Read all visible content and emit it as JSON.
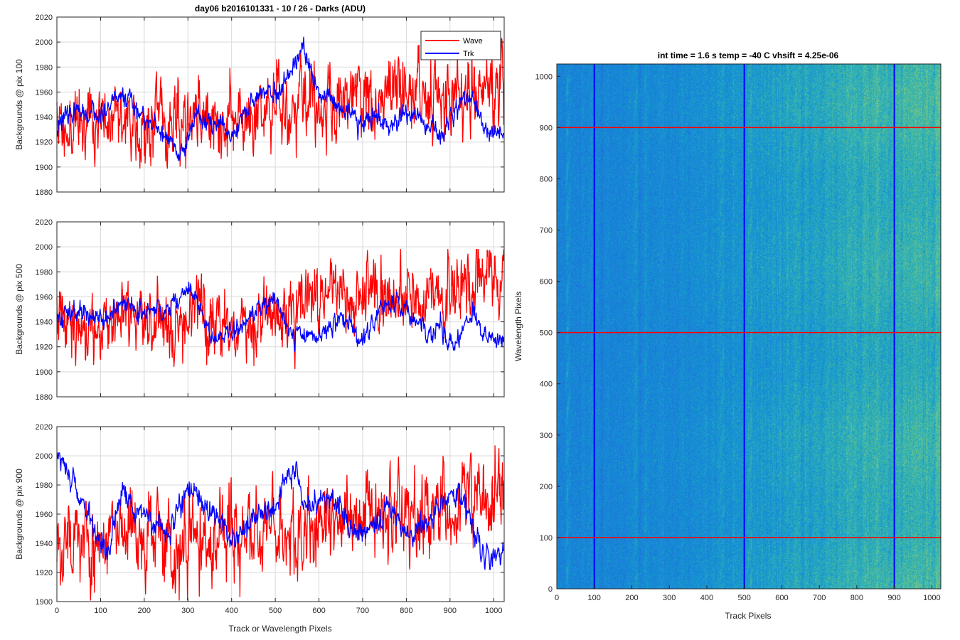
{
  "figure": {
    "title": "day06 b2016101331 - 10 / 26 - Darks (ADU)",
    "colors": {
      "wave": "#ff0000",
      "trk": "#0000ff",
      "grid": "#d9d9d9",
      "axis": "#262626",
      "heat_low": "#1f7fd8",
      "heat_high": "#b8d65a"
    }
  },
  "chart_data": [
    {
      "type": "line",
      "title": "day06 b2016101331 - 10 / 26 - Darks (ADU)",
      "xlabel": "",
      "ylabel": "Backgrounds @ pix 100",
      "xlim": [
        0,
        1024
      ],
      "ylim": [
        1880,
        2020
      ],
      "xticks": [
        0,
        100,
        200,
        300,
        400,
        500,
        600,
        700,
        800,
        900,
        1000
      ],
      "yticks": [
        1880,
        1900,
        1920,
        1940,
        1960,
        1980,
        2000,
        2020
      ],
      "xtick_labels_shown": false,
      "grid": true,
      "legend": {
        "placement": "top-right",
        "entries": [
          "Wave",
          "Trk"
        ]
      },
      "series": [
        {
          "name": "Wave",
          "color": "#ff0000",
          "points": 1024,
          "seed": 11,
          "trend": [
            [
              0,
              1935
            ],
            [
              200,
              1938
            ],
            [
              400,
              1940
            ],
            [
              500,
              1947
            ],
            [
              700,
              1955
            ],
            [
              900,
              1960
            ],
            [
              1023,
              1962
            ]
          ],
          "noise": 22,
          "wander": 4,
          "min": 1899,
          "max": 2003
        },
        {
          "name": "Trk",
          "color": "#0000ff",
          "points": 1024,
          "seed": 23,
          "trend": [
            [
              0,
              1932
            ],
            [
              40,
              1945
            ],
            [
              100,
              1940
            ],
            [
              150,
              1960
            ],
            [
              200,
              1940
            ],
            [
              250,
              1925
            ],
            [
              280,
              1910
            ],
            [
              320,
              1940
            ],
            [
              360,
              1935
            ],
            [
              400,
              1925
            ],
            [
              450,
              1955
            ],
            [
              480,
              1960
            ],
            [
              500,
              1955
            ],
            [
              540,
              1975
            ],
            [
              560,
              1995
            ],
            [
              600,
              1960
            ],
            [
              650,
              1948
            ],
            [
              700,
              1935
            ],
            [
              730,
              1942
            ],
            [
              760,
              1930
            ],
            [
              800,
              1943
            ],
            [
              850,
              1935
            ],
            [
              880,
              1925
            ],
            [
              920,
              1950
            ],
            [
              950,
              1955
            ],
            [
              980,
              1930
            ],
            [
              1023,
              1925
            ]
          ],
          "noise": 6,
          "wander": 0,
          "min": 1901,
          "max": 2004
        }
      ]
    },
    {
      "type": "line",
      "title": "",
      "xlabel": "",
      "ylabel": "Backgrounds @ pix 500",
      "xlim": [
        0,
        1024
      ],
      "ylim": [
        1880,
        2020
      ],
      "xticks": [
        0,
        100,
        200,
        300,
        400,
        500,
        600,
        700,
        800,
        900,
        1000
      ],
      "yticks": [
        1880,
        1900,
        1920,
        1940,
        1960,
        1980,
        2000,
        2020
      ],
      "xtick_labels_shown": false,
      "grid": true,
      "series": [
        {
          "name": "Wave",
          "color": "#ff0000",
          "points": 1024,
          "seed": 37,
          "trend": [
            [
              0,
              1938
            ],
            [
              200,
              1940
            ],
            [
              300,
              1948
            ],
            [
              400,
              1942
            ],
            [
              500,
              1948
            ],
            [
              600,
              1958
            ],
            [
              700,
              1962
            ],
            [
              850,
              1958
            ],
            [
              1023,
              1965
            ]
          ],
          "noise": 20,
          "wander": 4,
          "min": 1896,
          "max": 1998
        },
        {
          "name": "Trk",
          "color": "#0000ff",
          "points": 1024,
          "seed": 41,
          "trend": [
            [
              0,
              1942
            ],
            [
              50,
              1950
            ],
            [
              100,
              1940
            ],
            [
              150,
              1955
            ],
            [
              200,
              1948
            ],
            [
              250,
              1950
            ],
            [
              300,
              1965
            ],
            [
              330,
              1950
            ],
            [
              360,
              1925
            ],
            [
              400,
              1932
            ],
            [
              450,
              1945
            ],
            [
              500,
              1958
            ],
            [
              530,
              1935
            ],
            [
              560,
              1930
            ],
            [
              600,
              1928
            ],
            [
              650,
              1945
            ],
            [
              700,
              1925
            ],
            [
              730,
              1942
            ],
            [
              760,
              1958
            ],
            [
              800,
              1950
            ],
            [
              850,
              1930
            ],
            [
              880,
              1935
            ],
            [
              910,
              1920
            ],
            [
              950,
              1945
            ],
            [
              980,
              1930
            ],
            [
              1023,
              1925
            ]
          ],
          "noise": 6,
          "wander": 0,
          "min": 1907,
          "max": 1980
        }
      ]
    },
    {
      "type": "line",
      "title": "",
      "xlabel": "Track or Wavelength Pixels",
      "ylabel": "Backgrounds @ pix 900",
      "xlim": [
        0,
        1024
      ],
      "ylim": [
        1900,
        2020
      ],
      "xticks": [
        0,
        100,
        200,
        300,
        400,
        500,
        600,
        700,
        800,
        900,
        1000
      ],
      "yticks": [
        1900,
        1920,
        1940,
        1960,
        1980,
        2000,
        2020
      ],
      "xtick_labels_shown": true,
      "grid": true,
      "series": [
        {
          "name": "Wave",
          "color": "#ff0000",
          "points": 1024,
          "seed": 53,
          "trend": [
            [
              0,
              1945
            ],
            [
              200,
              1942
            ],
            [
              400,
              1945
            ],
            [
              500,
              1950
            ],
            [
              600,
              1955
            ],
            [
              700,
              1958
            ],
            [
              850,
              1962
            ],
            [
              1023,
              1968
            ]
          ],
          "noise": 22,
          "wander": 4,
          "min": 1901,
          "max": 2014
        },
        {
          "name": "Trk",
          "color": "#0000ff",
          "points": 1024,
          "seed": 67,
          "trend": [
            [
              0,
              2000
            ],
            [
              30,
              1985
            ],
            [
              60,
              1965
            ],
            [
              90,
              1945
            ],
            [
              120,
              1935
            ],
            [
              150,
              1975
            ],
            [
              180,
              1960
            ],
            [
              220,
              1955
            ],
            [
              260,
              1948
            ],
            [
              290,
              1975
            ],
            [
              320,
              1970
            ],
            [
              350,
              1962
            ],
            [
              380,
              1955
            ],
            [
              410,
              1940
            ],
            [
              450,
              1960
            ],
            [
              500,
              1965
            ],
            [
              540,
              1995
            ],
            [
              570,
              1960
            ],
            [
              620,
              1975
            ],
            [
              650,
              1965
            ],
            [
              680,
              1945
            ],
            [
              720,
              1950
            ],
            [
              760,
              1965
            ],
            [
              800,
              1945
            ],
            [
              850,
              1955
            ],
            [
              900,
              1975
            ],
            [
              930,
              1970
            ],
            [
              970,
              1935
            ],
            [
              1000,
              1930
            ],
            [
              1023,
              1935
            ]
          ],
          "noise": 6,
          "wander": 0,
          "min": 1922,
          "max": 2002
        }
      ]
    },
    {
      "type": "heatmap",
      "title": "int time = 1.6 s   temp = -40 C   vhsift = 4.25e-06",
      "xlabel": "Track Pixels",
      "ylabel": "Wavelength Pixels",
      "xlim": [
        0,
        1024
      ],
      "ylim": [
        0,
        1024
      ],
      "xticks": [
        0,
        100,
        200,
        300,
        400,
        500,
        600,
        700,
        800,
        900,
        1000
      ],
      "yticks": [
        0,
        100,
        200,
        300,
        400,
        500,
        600,
        700,
        800,
        900,
        1000
      ],
      "grid": false,
      "value_profile": [
        [
          0,
          0.18
        ],
        [
          150,
          0.2
        ],
        [
          300,
          0.25
        ],
        [
          450,
          0.3
        ],
        [
          550,
          0.36
        ],
        [
          650,
          0.42
        ],
        [
          800,
          0.5
        ],
        [
          950,
          0.55
        ],
        [
          1024,
          0.58
        ]
      ],
      "vertical_lines": {
        "x": [
          100,
          500,
          900
        ],
        "color": "#0000ff"
      },
      "horizontal_lines": {
        "y": [
          100,
          500,
          900
        ],
        "color": "#ff0000"
      }
    }
  ]
}
